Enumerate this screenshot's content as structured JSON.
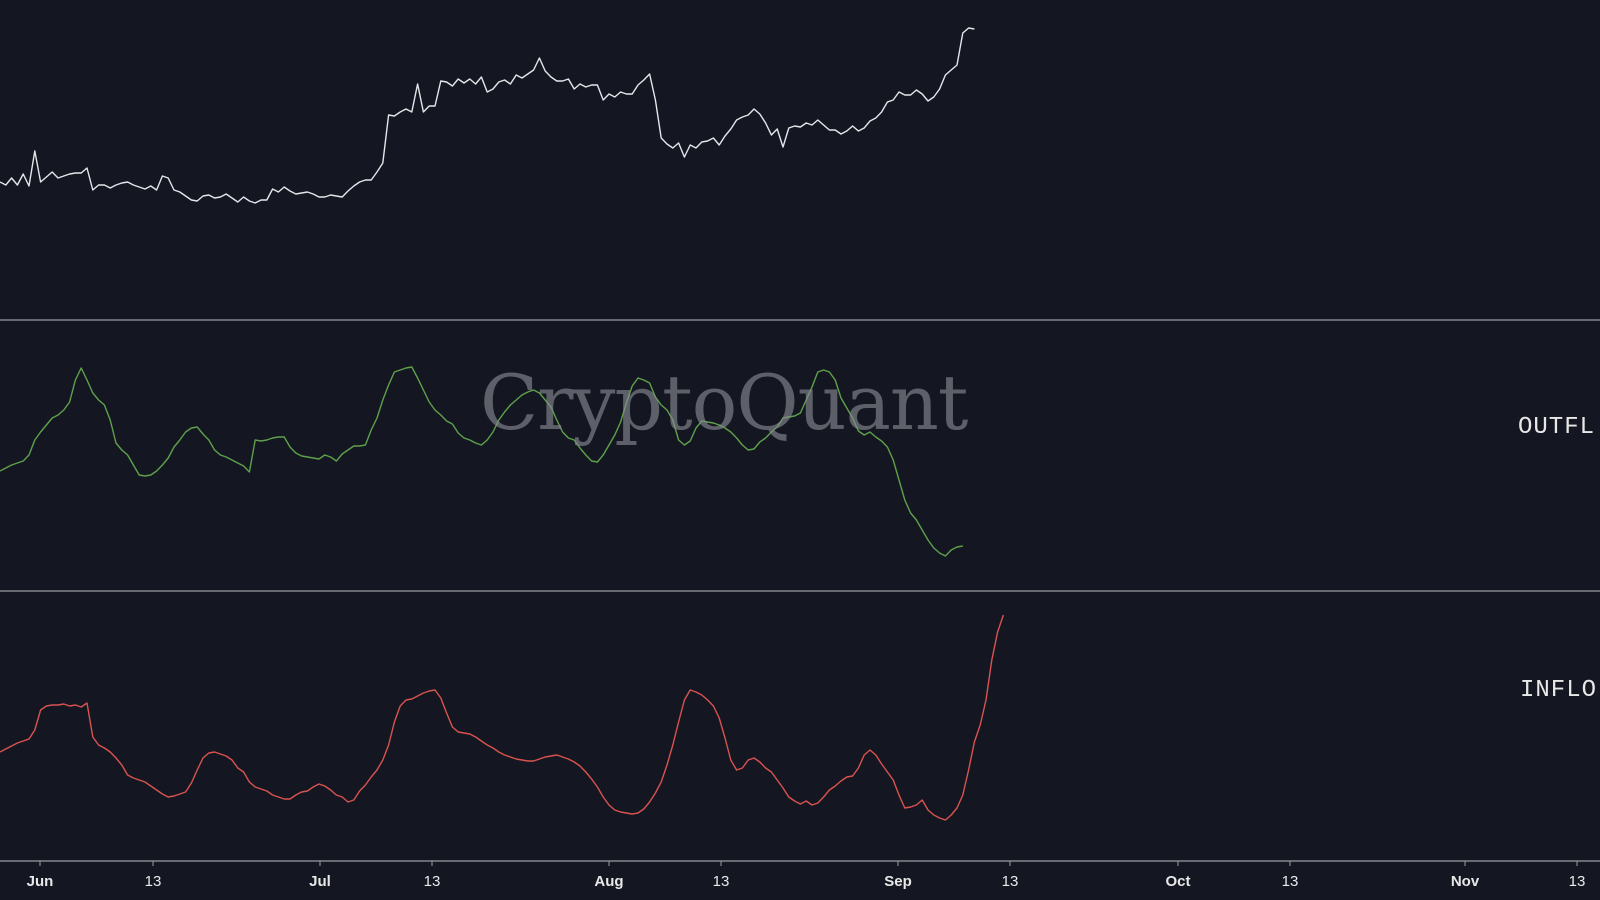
{
  "watermark": "CryptoQuant",
  "colors": {
    "background": "#141722",
    "price": "#e6e6ea",
    "outflow": "#5ea14a",
    "inflow": "#d9534f",
    "divider": "#9a9ca3",
    "tick": "#e8e8e8"
  },
  "chart_data": [
    {
      "type": "line",
      "panel": "top",
      "series": [
        {
          "y": [
            182,
            185,
            178,
            185,
            174,
            186,
            151,
            182,
            177,
            172,
            178,
            176,
            174,
            173,
            173,
            168,
            190,
            185,
            185,
            188,
            185,
            183,
            182,
            185,
            187,
            189,
            186,
            190,
            176,
            178,
            190,
            192,
            196,
            200,
            201,
            196,
            195,
            198,
            197,
            194,
            198,
            202,
            197,
            201,
            203,
            200,
            200,
            189,
            192,
            187,
            191,
            194,
            193,
            192,
            194,
            197,
            197,
            195,
            196,
            197,
            191,
            186,
            182,
            180,
            180,
            172,
            163,
            115,
            116,
            112,
            109,
            112,
            84,
            112,
            106,
            106,
            81,
            82,
            86,
            79,
            83,
            79,
            84,
            77,
            92,
            89,
            82,
            80,
            84,
            75,
            78,
            74,
            70,
            58,
            71,
            77,
            81,
            81,
            79,
            89,
            84,
            87,
            85,
            85,
            100,
            94,
            97,
            92,
            94,
            94,
            85,
            80,
            74,
            100,
            138,
            144,
            148,
            143,
            157,
            145,
            148,
            142,
            141,
            138,
            145,
            136,
            129,
            120,
            117,
            115,
            109,
            114,
            123,
            135,
            129,
            147,
            128,
            126,
            127,
            123,
            125,
            120,
            125,
            130,
            130,
            134,
            131,
            126,
            131,
            128,
            121,
            118,
            112,
            102,
            100,
            92,
            95,
            95,
            90,
            94,
            101,
            97,
            89,
            75,
            70,
            65,
            33,
            28,
            29
          ]
        }
      ]
    },
    {
      "type": "line",
      "panel": "middle",
      "series": [
        {
          "name": "OUTFL",
          "y": [
            471,
            468,
            465,
            463,
            461,
            455,
            440,
            432,
            425,
            418,
            415,
            410,
            402,
            380,
            368,
            380,
            393,
            400,
            405,
            420,
            443,
            450,
            455,
            465,
            475,
            476,
            475,
            471,
            465,
            458,
            447,
            440,
            432,
            428,
            427,
            434,
            440,
            450,
            455,
            457,
            460,
            463,
            466,
            472,
            440,
            441,
            440,
            438,
            437,
            437,
            447,
            453,
            456,
            457,
            458,
            459,
            455,
            457,
            461,
            454,
            450,
            446,
            446,
            445,
            430,
            418,
            400,
            385,
            372,
            370,
            368,
            367,
            378,
            390,
            402,
            410,
            415,
            421,
            424,
            433,
            438,
            440,
            443,
            445,
            440,
            432,
            420,
            412,
            405,
            400,
            395,
            392,
            390,
            393,
            400,
            407,
            420,
            432,
            438,
            440,
            448,
            455,
            461,
            462,
            455,
            445,
            435,
            422,
            403,
            386,
            378,
            380,
            383,
            397,
            405,
            410,
            420,
            440,
            445,
            441,
            428,
            421,
            422,
            423,
            425,
            428,
            432,
            438,
            445,
            450,
            449,
            442,
            438,
            432,
            427,
            418,
            417,
            416,
            413,
            400,
            387,
            372,
            370,
            372,
            380,
            398,
            408,
            418,
            431,
            435,
            432,
            437,
            441,
            447,
            460,
            480,
            500,
            513,
            520,
            530,
            540,
            548,
            553,
            556,
            550,
            547,
            546
          ]
        }
      ]
    },
    {
      "type": "line",
      "panel": "bottom",
      "series": [
        {
          "name": "INFLO",
          "y": [
            752,
            749,
            746,
            743,
            741,
            739,
            730,
            710,
            706,
            705,
            705,
            704,
            706,
            705,
            707,
            703,
            737,
            745,
            748,
            752,
            758,
            765,
            775,
            778,
            780,
            782,
            786,
            790,
            794,
            797,
            796,
            794,
            792,
            783,
            770,
            758,
            753,
            752,
            754,
            756,
            760,
            768,
            772,
            782,
            787,
            789,
            791,
            795,
            797,
            799,
            799,
            795,
            792,
            791,
            787,
            784,
            786,
            790,
            795,
            797,
            802,
            800,
            791,
            785,
            777,
            770,
            760,
            745,
            722,
            706,
            700,
            699,
            696,
            693,
            691,
            690,
            698,
            713,
            727,
            732,
            733,
            734,
            737,
            741,
            745,
            748,
            752,
            755,
            757,
            759,
            760,
            761,
            761,
            759,
            757,
            756,
            755,
            757,
            759,
            762,
            766,
            772,
            779,
            787,
            797,
            805,
            810,
            812,
            813,
            814,
            813,
            809,
            802,
            793,
            782,
            765,
            745,
            722,
            700,
            690,
            692,
            695,
            700,
            706,
            718,
            738,
            760,
            770,
            768,
            760,
            758,
            762,
            768,
            772,
            780,
            788,
            797,
            801,
            804,
            801,
            805,
            803,
            797,
            790,
            786,
            781,
            777,
            776,
            768,
            755,
            750,
            755,
            764,
            772,
            780,
            795,
            808,
            807,
            805,
            800,
            810,
            815,
            818,
            820,
            815,
            808,
            795,
            770,
            742,
            725,
            700,
            660,
            632,
            615
          ]
        }
      ]
    }
  ],
  "x_axis": {
    "ticks": [
      {
        "label": "Jun",
        "bold": true
      },
      {
        "label": "13",
        "bold": false
      },
      {
        "label": "Jul",
        "bold": true
      },
      {
        "label": "13",
        "bold": false
      },
      {
        "label": "Aug",
        "bold": true
      },
      {
        "label": "13",
        "bold": false
      },
      {
        "label": "Sep",
        "bold": true
      },
      {
        "label": "13",
        "bold": false
      },
      {
        "label": "Oct",
        "bold": true
      },
      {
        "label": "13",
        "bold": false
      },
      {
        "label": "Nov",
        "bold": true
      },
      {
        "label": "13",
        "bold": false
      }
    ]
  }
}
